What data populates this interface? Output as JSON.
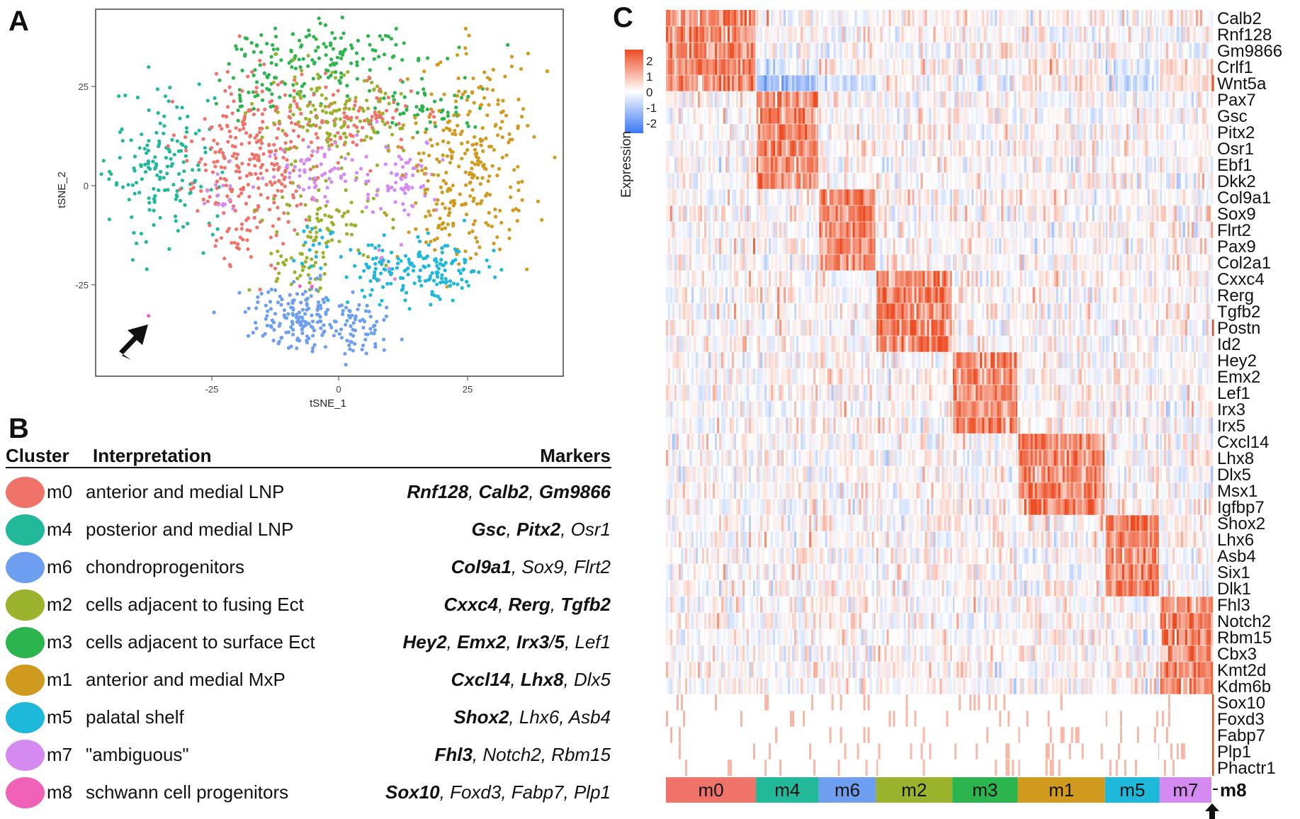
{
  "panels": {
    "a_label": "A",
    "b_label": "B",
    "c_label": "C"
  },
  "tsne": {
    "xlabel": "tSNE_1",
    "ylabel": "tSNE_2",
    "xticks": [
      "-25",
      "0",
      "25"
    ],
    "yticks": [
      "25",
      "0",
      "-25"
    ],
    "xlim": [
      -45,
      45
    ],
    "ylim": [
      -46,
      41
    ],
    "colors": {
      "m0": "#f0736a",
      "m1": "#d09a1e",
      "m2": "#9ab22c",
      "m3": "#2cb44e",
      "m4": "#22b89a",
      "m5": "#1eb8da",
      "m6": "#6d9ef0",
      "m7": "#d48af0",
      "m8": "#f062b8"
    }
  },
  "table": {
    "col_cluster": "Cluster",
    "col_interpretation": "Interpretation",
    "col_markers": "Markers",
    "rows": [
      {
        "cluster": "m0",
        "interpretation": "anterior and medial LNP",
        "color": "#f0736a",
        "markers": [
          {
            "t": "Rnf128",
            "b": true
          },
          {
            "t": ", ",
            "b": false
          },
          {
            "t": "Calb2",
            "b": true
          },
          {
            "t": ", ",
            "b": false
          },
          {
            "t": "Gm9866",
            "b": true
          }
        ]
      },
      {
        "cluster": "m4",
        "interpretation": "posterior and medial LNP",
        "color": "#22b89a",
        "markers": [
          {
            "t": "Gsc",
            "b": true
          },
          {
            "t": ", ",
            "b": false
          },
          {
            "t": "Pitx2",
            "b": true
          },
          {
            "t": ", Osr1",
            "b": false
          }
        ]
      },
      {
        "cluster": "m6",
        "interpretation": "chondroprogenitors",
        "color": "#6d9ef0",
        "markers": [
          {
            "t": "Col9a1",
            "b": true
          },
          {
            "t": ", Sox9, Flrt2",
            "b": false
          }
        ]
      },
      {
        "cluster": "m2",
        "interpretation": "cells adjacent to fusing Ect",
        "color": "#9ab22c",
        "markers": [
          {
            "t": "Cxxc4",
            "b": true
          },
          {
            "t": ", ",
            "b": false
          },
          {
            "t": "Rerg",
            "b": true
          },
          {
            "t": ", ",
            "b": false
          },
          {
            "t": "Tgfb2",
            "b": true
          }
        ]
      },
      {
        "cluster": "m3",
        "interpretation": "cells adjacent to surface Ect",
        "color": "#2cb44e",
        "markers": [
          {
            "t": "Hey2",
            "b": true
          },
          {
            "t": ", ",
            "b": false
          },
          {
            "t": "Emx2",
            "b": true
          },
          {
            "t": ", ",
            "b": false
          },
          {
            "t": "Irx3",
            "b": true
          },
          {
            "t": "/",
            "b": false
          },
          {
            "t": "5",
            "b": true
          },
          {
            "t": ", Lef1",
            "b": false
          }
        ]
      },
      {
        "cluster": "m1",
        "interpretation": "anterior and medial MxP",
        "color": "#d09a1e",
        "markers": [
          {
            "t": "Cxcl14",
            "b": true
          },
          {
            "t": ", ",
            "b": false
          },
          {
            "t": "Lhx8",
            "b": true
          },
          {
            "t": ", Dlx5",
            "b": false
          }
        ]
      },
      {
        "cluster": "m5",
        "interpretation": "palatal shelf",
        "color": "#1eb8da",
        "markers": [
          {
            "t": "Shox2",
            "b": true
          },
          {
            "t": ", Lhx6, Asb4",
            "b": false
          }
        ]
      },
      {
        "cluster": "m7",
        "interpretation": "\"ambiguous\"",
        "color": "#d48af0",
        "markers": [
          {
            "t": "Fhl3",
            "b": true
          },
          {
            "t": ", Notch2, Rbm15",
            "b": false
          }
        ]
      },
      {
        "cluster": "m8",
        "interpretation": "schwann cell progenitors",
        "color": "#f062b8",
        "markers": [
          {
            "t": "Sox10",
            "b": true
          },
          {
            "t": ", Foxd3, Fabp7, Plp1",
            "b": false
          }
        ]
      }
    ]
  },
  "heatmap": {
    "legend_title": "Expression",
    "legend_ticks": [
      "2",
      "1",
      "0",
      "-1",
      "-2"
    ],
    "low_color": "#3a78f2",
    "mid_color": "#ffffff",
    "high_color": "#ec4c22",
    "clusters": [
      {
        "name": "m0",
        "color": "#f0736a",
        "width": 0.165
      },
      {
        "name": "m4",
        "color": "#22b89a",
        "width": 0.115
      },
      {
        "name": "m6",
        "color": "#6d9ef0",
        "width": 0.105
      },
      {
        "name": "m2",
        "color": "#9ab22c",
        "width": 0.14
      },
      {
        "name": "m3",
        "color": "#2cb44e",
        "width": 0.12
      },
      {
        "name": "m1",
        "color": "#d09a1e",
        "width": 0.16
      },
      {
        "name": "m5",
        "color": "#1eb8da",
        "width": 0.1
      },
      {
        "name": "m7",
        "color": "#d48af0",
        "width": 0.095
      }
    ],
    "m8_label": "m8",
    "genes": [
      "Calb2",
      "Rnf128",
      "Gm9866",
      "Crlf1",
      "Wnt5a",
      "Pax7",
      "Gsc",
      "Pitx2",
      "Osr1",
      "Ebf1",
      "Dkk2",
      "Col9a1",
      "Sox9",
      "Flrt2",
      "Pax9",
      "Col2a1",
      "Cxxc4",
      "Rerg",
      "Tgfb2",
      "Postn",
      "Id2",
      "Hey2",
      "Emx2",
      "Lef1",
      "Irx3",
      "Irx5",
      "Cxcl14",
      "Lhx8",
      "Dlx5",
      "Msx1",
      "Igfbp7",
      "Shox2",
      "Lhx6",
      "Asb4",
      "Six1",
      "Dlk1",
      "Fhl3",
      "Notch2",
      "Rbm15",
      "Cbx3",
      "Kmt2d",
      "Kdm6b",
      "Sox10",
      "Foxd3",
      "Fabp7",
      "Plp1",
      "Phactr1"
    ],
    "gene_group": [
      0,
      0,
      0,
      0,
      0,
      1,
      1,
      1,
      1,
      1,
      1,
      2,
      2,
      2,
      2,
      2,
      3,
      3,
      3,
      3,
      3,
      4,
      4,
      4,
      4,
      4,
      5,
      5,
      5,
      5,
      5,
      6,
      6,
      6,
      6,
      6,
      7,
      7,
      7,
      7,
      7,
      7,
      8,
      8,
      8,
      8,
      8
    ],
    "background_bias": [
      [
        0.1,
        -0.1,
        0.0,
        0.1,
        0.0,
        0.1,
        0.0,
        0.1
      ],
      [
        0.1,
        0.0,
        0.0,
        0.0,
        0.0,
        -0.1,
        0.0,
        0.0
      ],
      [
        0.0,
        0.0,
        0.0,
        0.0,
        0.0,
        0.0,
        0.0,
        0.0
      ],
      [
        0.3,
        -0.4,
        0.0,
        0.1,
        -0.2,
        0.2,
        -0.3,
        0.2
      ],
      [
        0.2,
        -0.9,
        -0.5,
        0.0,
        -0.2,
        0.1,
        -0.5,
        0.3
      ]
    ]
  }
}
